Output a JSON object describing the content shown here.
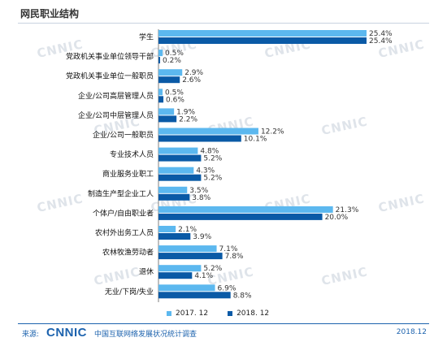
{
  "page": {
    "title": "网民职业结构",
    "watermark": "CNNIC"
  },
  "footer": {
    "source_label": "来源:",
    "logo_text": "CNNIC",
    "org_name": "中国互联网络发展状况统计调查",
    "date": "2018.12"
  },
  "chart_data": {
    "type": "bar",
    "orientation": "horizontal",
    "title": "网民职业结构",
    "categories": [
      "学生",
      "党政机关事业单位领导干部",
      "党政机关事业单位一般职员",
      "企业/公司高层管理人员",
      "企业/公司中层管理人员",
      "企业/公司一般职员",
      "专业技术人员",
      "商业服务业职工",
      "制造生产型企业工人",
      "个体户/自由职业者",
      "农村外出务工人员",
      "农林牧渔劳动者",
      "退休",
      "无业/下岗/失业"
    ],
    "series": [
      {
        "name": "2017. 12",
        "color": "#5cb8ef",
        "values": [
          25.4,
          0.5,
          2.9,
          0.5,
          1.9,
          12.2,
          4.8,
          4.3,
          3.5,
          21.3,
          2.1,
          7.1,
          5.2,
          6.9
        ],
        "labels": [
          "25.4%",
          "0.5%",
          "2.9%",
          "0.5%",
          "1.9%",
          "12.2%",
          "4.8%",
          "4.3%",
          "3.5%",
          "21.3%",
          "2.1%",
          "7.1%",
          "5.2%",
          "6.9%"
        ]
      },
      {
        "name": "2018. 12",
        "color": "#0a5aa6",
        "values": [
          25.4,
          0.2,
          2.6,
          0.6,
          2.2,
          10.1,
          5.2,
          5.2,
          3.8,
          20.0,
          3.9,
          7.8,
          4.1,
          8.8
        ],
        "labels": [
          "25.4%",
          "0.2%",
          "2.6%",
          "0.6%",
          "2.2%",
          "10.1%",
          "5.2%",
          "5.2%",
          "3.8%",
          "20.0%",
          "3.9%",
          "7.8%",
          "4.1%",
          "8.8%"
        ]
      }
    ],
    "xlim": [
      0,
      25.4
    ],
    "grid": false,
    "legend_position": "bottom-center"
  }
}
